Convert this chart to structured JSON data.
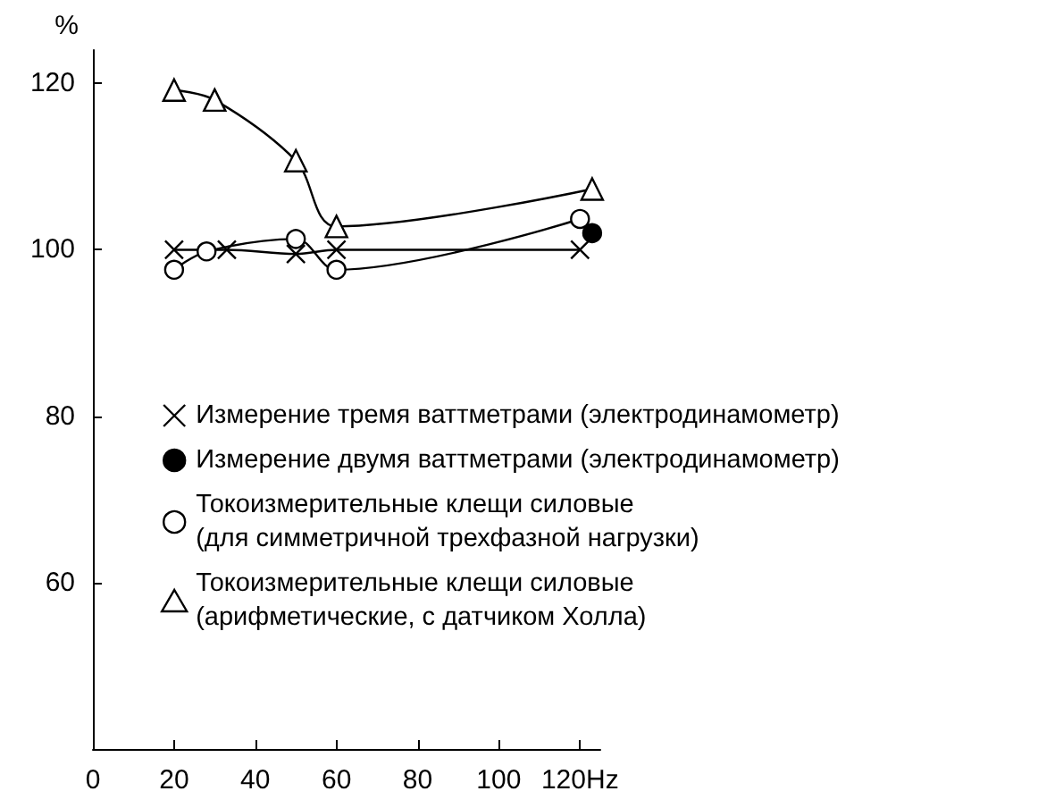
{
  "chart_data": {
    "type": "line",
    "ylabel": "%",
    "xlim": [
      0,
      125
    ],
    "xticks": [
      0,
      20,
      40,
      60,
      80,
      100,
      {
        "value": 120,
        "label": "120Hz"
      }
    ],
    "ylim": [
      40,
      124
    ],
    "yticks": [
      60,
      80,
      100,
      120
    ],
    "grid": false,
    "legend": "bottom right",
    "line_style": "solid",
    "series": [
      {
        "name": "Измерение тремя ваттметрами (электродинамометр)",
        "color": "#000000",
        "marker": "cross",
        "x": [
          20,
          33,
          50,
          60,
          120
        ],
        "values": [
          100,
          100,
          99.5,
          100,
          100
        ]
      },
      {
        "name": "Измерение двумя ваттметрами (электродинамометр)",
        "color": "#000000",
        "colors": [
          "#000000"
        ],
        "marker": "circle",
        "x": [
          123
        ],
        "values": [
          102
        ]
      },
      {
        "name": "Токоизмерительные клещи силовые\n(для симметричной трехфазной нагрузки)",
        "color": "#000000",
        "colors": [
          "#ffffff",
          "#ffffff",
          "#ffffff",
          "#ffffff",
          "#ffffff"
        ],
        "marker": "circle",
        "x": [
          20,
          28,
          50,
          60,
          120
        ],
        "values": [
          97.6,
          99.8,
          101.3,
          97.6,
          103.7
        ]
      },
      {
        "name": "Токоизмерительные клещи силовые\n(арифметические, с датчиком Холла)",
        "color": "#000000",
        "colors": [
          "#ffffff",
          "#ffffff",
          "#ffffff",
          "#ffffff",
          "#ffffff"
        ],
        "marker": "triangle",
        "x": [
          20,
          30,
          50,
          60,
          123
        ],
        "values": [
          119.2,
          118,
          110.7,
          102.8,
          107.3
        ]
      }
    ]
  }
}
